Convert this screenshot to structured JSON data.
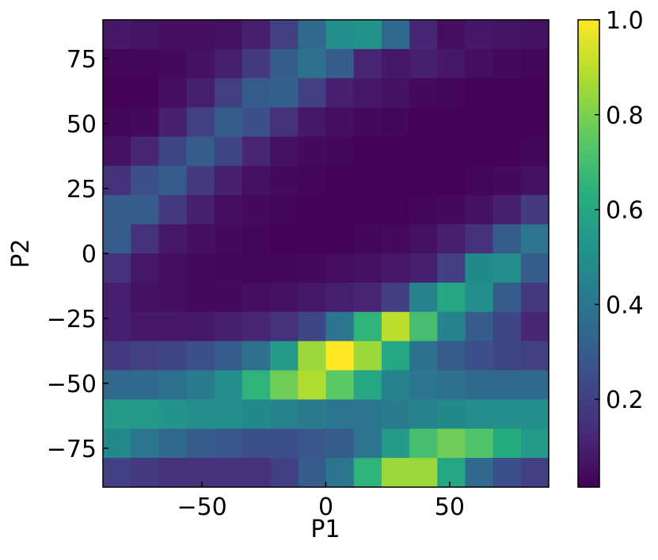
{
  "chart_data": {
    "type": "heatmap",
    "colormap": "viridis",
    "x_label": "P1",
    "y_label": "P2",
    "xlim": [
      -90,
      90
    ],
    "ylim": [
      -90,
      90
    ],
    "xticks": [
      {
        "value": -50,
        "label": "−50"
      },
      0,
      50
    ],
    "yticks": [
      {
        "value": -75,
        "label": "−75"
      },
      {
        "value": -50,
        "label": "−50"
      },
      {
        "value": -25,
        "label": "−25"
      },
      0,
      25,
      50,
      75
    ],
    "clim": [
      0.015,
      1
    ],
    "cticks": [
      0.2,
      0.4,
      0.6,
      0.8,
      {
        "value": 1,
        "label": "1.0"
      }
    ],
    "values": [
      [
        0.08,
        0.07,
        0.05,
        0.05,
        0.06,
        0.1,
        0.2,
        0.35,
        0.5,
        0.52,
        0.35,
        0.12,
        0.05,
        0.08,
        0.07,
        0.06
      ],
      [
        0.03,
        0.03,
        0.04,
        0.06,
        0.1,
        0.18,
        0.3,
        0.38,
        0.3,
        0.12,
        0.08,
        0.1,
        0.08,
        0.05,
        0.04,
        0.03
      ],
      [
        0.02,
        0.02,
        0.05,
        0.1,
        0.2,
        0.3,
        0.32,
        0.2,
        0.1,
        0.08,
        0.06,
        0.04,
        0.03,
        0.02,
        0.02,
        0.02
      ],
      [
        0.03,
        0.04,
        0.1,
        0.2,
        0.3,
        0.25,
        0.15,
        0.08,
        0.05,
        0.04,
        0.03,
        0.02,
        0.02,
        0.02,
        0.02,
        0.02
      ],
      [
        0.06,
        0.12,
        0.22,
        0.3,
        0.22,
        0.12,
        0.06,
        0.04,
        0.03,
        0.02,
        0.02,
        0.02,
        0.02,
        0.02,
        0.02,
        0.03
      ],
      [
        0.15,
        0.25,
        0.3,
        0.18,
        0.1,
        0.06,
        0.04,
        0.03,
        0.02,
        0.02,
        0.02,
        0.02,
        0.02,
        0.03,
        0.04,
        0.06
      ],
      [
        0.3,
        0.3,
        0.18,
        0.1,
        0.05,
        0.04,
        0.03,
        0.02,
        0.02,
        0.02,
        0.02,
        0.03,
        0.04,
        0.06,
        0.1,
        0.18
      ],
      [
        0.3,
        0.15,
        0.08,
        0.05,
        0.04,
        0.03,
        0.02,
        0.02,
        0.02,
        0.03,
        0.04,
        0.06,
        0.1,
        0.15,
        0.3,
        0.4
      ],
      [
        0.15,
        0.08,
        0.05,
        0.04,
        0.03,
        0.03,
        0.03,
        0.04,
        0.05,
        0.06,
        0.08,
        0.1,
        0.2,
        0.48,
        0.5,
        0.3
      ],
      [
        0.1,
        0.06,
        0.05,
        0.04,
        0.04,
        0.05,
        0.06,
        0.08,
        0.1,
        0.12,
        0.2,
        0.45,
        0.6,
        0.5,
        0.3,
        0.18
      ],
      [
        0.1,
        0.08,
        0.08,
        0.08,
        0.1,
        0.12,
        0.15,
        0.22,
        0.4,
        0.65,
        0.9,
        0.7,
        0.45,
        0.3,
        0.22,
        0.12
      ],
      [
        0.18,
        0.2,
        0.22,
        0.25,
        0.3,
        0.38,
        0.55,
        0.85,
        1.0,
        0.85,
        0.6,
        0.38,
        0.3,
        0.25,
        0.22,
        0.2
      ],
      [
        0.35,
        0.35,
        0.38,
        0.42,
        0.5,
        0.65,
        0.78,
        0.88,
        0.75,
        0.6,
        0.45,
        0.4,
        0.38,
        0.35,
        0.35,
        0.35
      ],
      [
        0.55,
        0.55,
        0.52,
        0.5,
        0.5,
        0.48,
        0.45,
        0.42,
        0.4,
        0.4,
        0.42,
        0.45,
        0.48,
        0.5,
        0.5,
        0.5
      ],
      [
        0.48,
        0.4,
        0.35,
        0.3,
        0.28,
        0.25,
        0.25,
        0.28,
        0.3,
        0.4,
        0.55,
        0.7,
        0.78,
        0.72,
        0.62,
        0.55
      ],
      [
        0.2,
        0.18,
        0.15,
        0.15,
        0.15,
        0.15,
        0.2,
        0.3,
        0.4,
        0.65,
        0.85,
        0.85,
        0.6,
        0.35,
        0.25,
        0.2
      ]
    ]
  }
}
